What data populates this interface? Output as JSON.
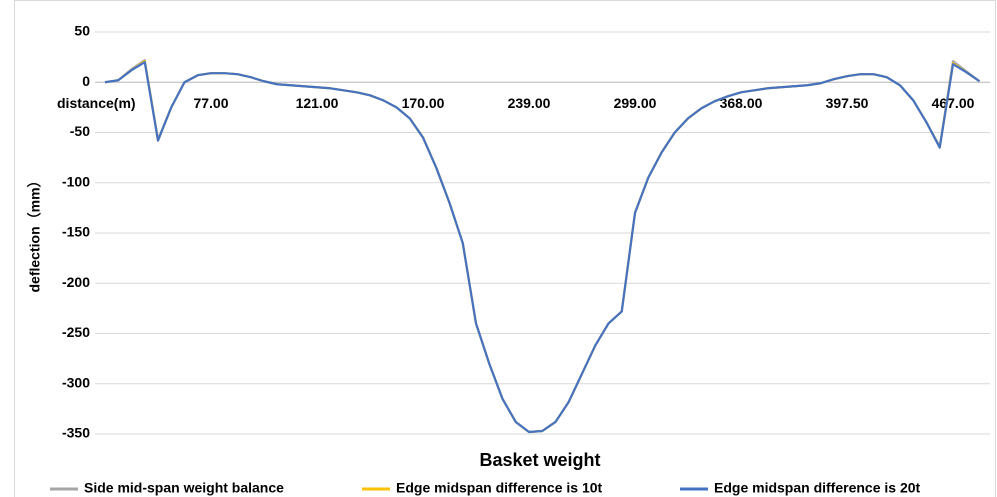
{
  "chart_data": {
    "type": "line",
    "x_label": "Basket weight",
    "y_label": "deflection（mm）",
    "categories": [
      "distance(m)",
      null,
      null,
      null,
      null,
      null,
      null,
      null,
      "77.00",
      null,
      null,
      null,
      null,
      null,
      null,
      null,
      "121.00",
      null,
      null,
      null,
      null,
      null,
      null,
      null,
      "170.00",
      null,
      null,
      null,
      null,
      null,
      null,
      null,
      "239.00",
      null,
      null,
      null,
      null,
      null,
      null,
      null,
      "299.00",
      null,
      null,
      null,
      null,
      null,
      null,
      null,
      "368.00",
      null,
      null,
      null,
      null,
      null,
      null,
      null,
      "397.50",
      null,
      null,
      null,
      null,
      null,
      null,
      null,
      "467.00",
      null,
      null
    ],
    "series": [
      {
        "name": "Side mid-span weight balance",
        "color": "#a5a5a5",
        "values": [
          0,
          2,
          13,
          22,
          -57,
          -25,
          0,
          7,
          9,
          9,
          8,
          5,
          1,
          -2,
          -3,
          -4,
          -5,
          -6,
          -8,
          -10,
          -13,
          -18,
          -25,
          -36,
          -55,
          -85,
          -120,
          -160,
          -240,
          -280,
          -315,
          -338,
          -348,
          -347,
          -338,
          -318,
          -290,
          -262,
          -240,
          -228,
          -130,
          -95,
          -70,
          -50,
          -36,
          -26,
          -19,
          -14,
          -10,
          -8,
          -6,
          -5,
          -4,
          -3,
          -1,
          3,
          6,
          8,
          8,
          5,
          -3,
          -18,
          -40,
          -64,
          21,
          11,
          1
        ]
      },
      {
        "name": "Edge midspan difference is 10t",
        "color": "#ffc000",
        "values": [
          0,
          2,
          12,
          21,
          -58,
          -25,
          0,
          7,
          9,
          9,
          8,
          5,
          1,
          -2,
          -3,
          -4,
          -5,
          -6,
          -8,
          -10,
          -13,
          -18,
          -25,
          -36,
          -55,
          -85,
          -120,
          -160,
          -240,
          -280,
          -315,
          -338,
          -348,
          -347,
          -338,
          -318,
          -290,
          -262,
          -240,
          -228,
          -130,
          -95,
          -70,
          -50,
          -36,
          -26,
          -19,
          -14,
          -10,
          -8,
          -6,
          -5,
          -4,
          -3,
          -1,
          3,
          6,
          8,
          8,
          5,
          -3,
          -18,
          -40,
          -65,
          19,
          10,
          1
        ]
      },
      {
        "name": "Edge midspan difference is 20t",
        "color": "#4472c4",
        "values": [
          0,
          2,
          12,
          20,
          -58,
          -25,
          0,
          7,
          9,
          9,
          8,
          5,
          1,
          -2,
          -3,
          -4,
          -5,
          -6,
          -8,
          -10,
          -13,
          -18,
          -25,
          -36,
          -55,
          -85,
          -120,
          -160,
          -240,
          -280,
          -315,
          -338,
          -348,
          -347,
          -338,
          -318,
          -290,
          -262,
          -240,
          -228,
          -130,
          -95,
          -70,
          -50,
          -36,
          -26,
          -19,
          -14,
          -10,
          -8,
          -6,
          -5,
          -4,
          -3,
          -1,
          3,
          6,
          8,
          8,
          5,
          -3,
          -18,
          -40,
          -65,
          18,
          10,
          1
        ]
      }
    ],
    "ylim": [
      -350,
      50
    ],
    "yticks": [
      50,
      0,
      -50,
      -100,
      -150,
      -200,
      -250,
      -300,
      -350
    ],
    "grid": true
  }
}
